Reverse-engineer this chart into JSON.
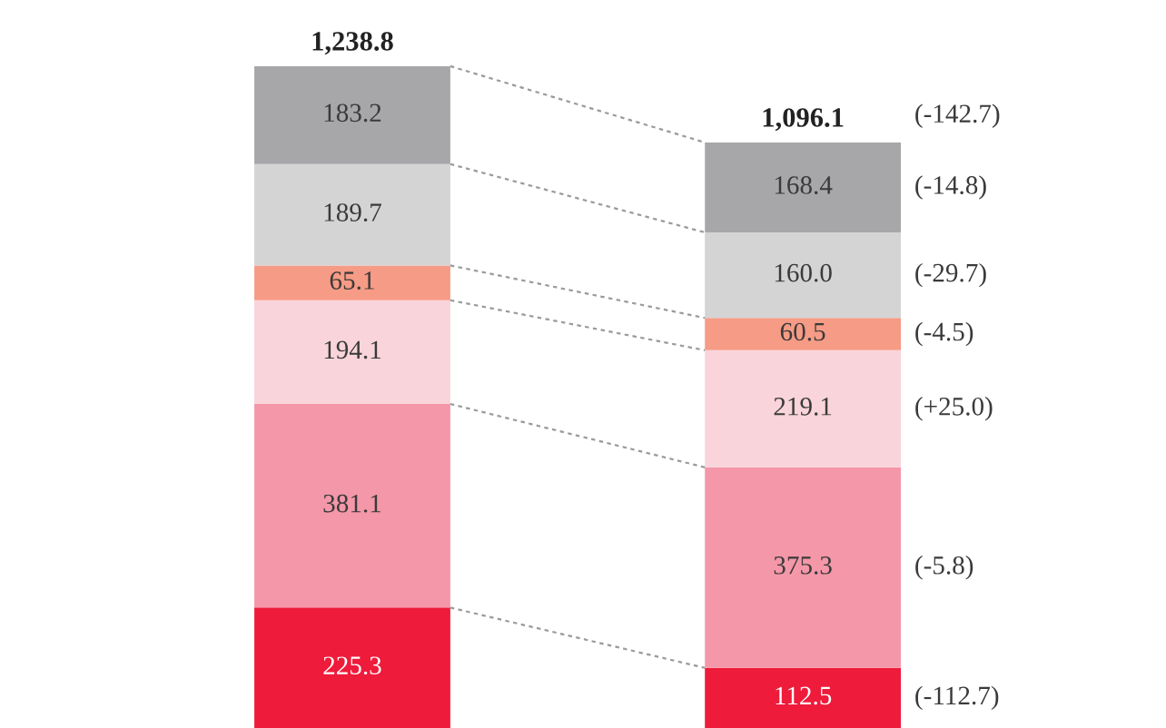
{
  "chart_data": {
    "type": "bar",
    "stacked": true,
    "categories": [
      null,
      null
    ],
    "series": [
      {
        "color": "#ee1b3b",
        "values": [
          225.3,
          112.5
        ],
        "value_labels": [
          "225.3",
          "112.5"
        ]
      },
      {
        "color": "#f497a9",
        "values": [
          381.1,
          375.3
        ],
        "value_labels": [
          "381.1",
          "375.3"
        ]
      },
      {
        "color": "#f9d4db",
        "values": [
          194.1,
          219.1
        ],
        "value_labels": [
          "194.1",
          "219.1"
        ]
      },
      {
        "color": "#f69b85",
        "values": [
          65.1,
          60.5
        ],
        "value_labels": [
          "65.1",
          "60.5"
        ]
      },
      {
        "color": "#d4d4d5",
        "values": [
          189.7,
          160.0
        ],
        "value_labels": [
          "189.7",
          "160.0"
        ]
      },
      {
        "color": "#a7a7a9",
        "values": [
          183.2,
          168.4
        ],
        "value_labels": [
          "183.2",
          "168.4"
        ]
      }
    ],
    "totals": [
      "1,238.8",
      "1,096.1"
    ],
    "annotations": [
      "(-112.7)",
      "(-5.8)",
      "(+25.0)",
      "(-4.5)",
      "(-29.7)",
      "(-14.8)",
      "(-142.7)"
    ]
  }
}
